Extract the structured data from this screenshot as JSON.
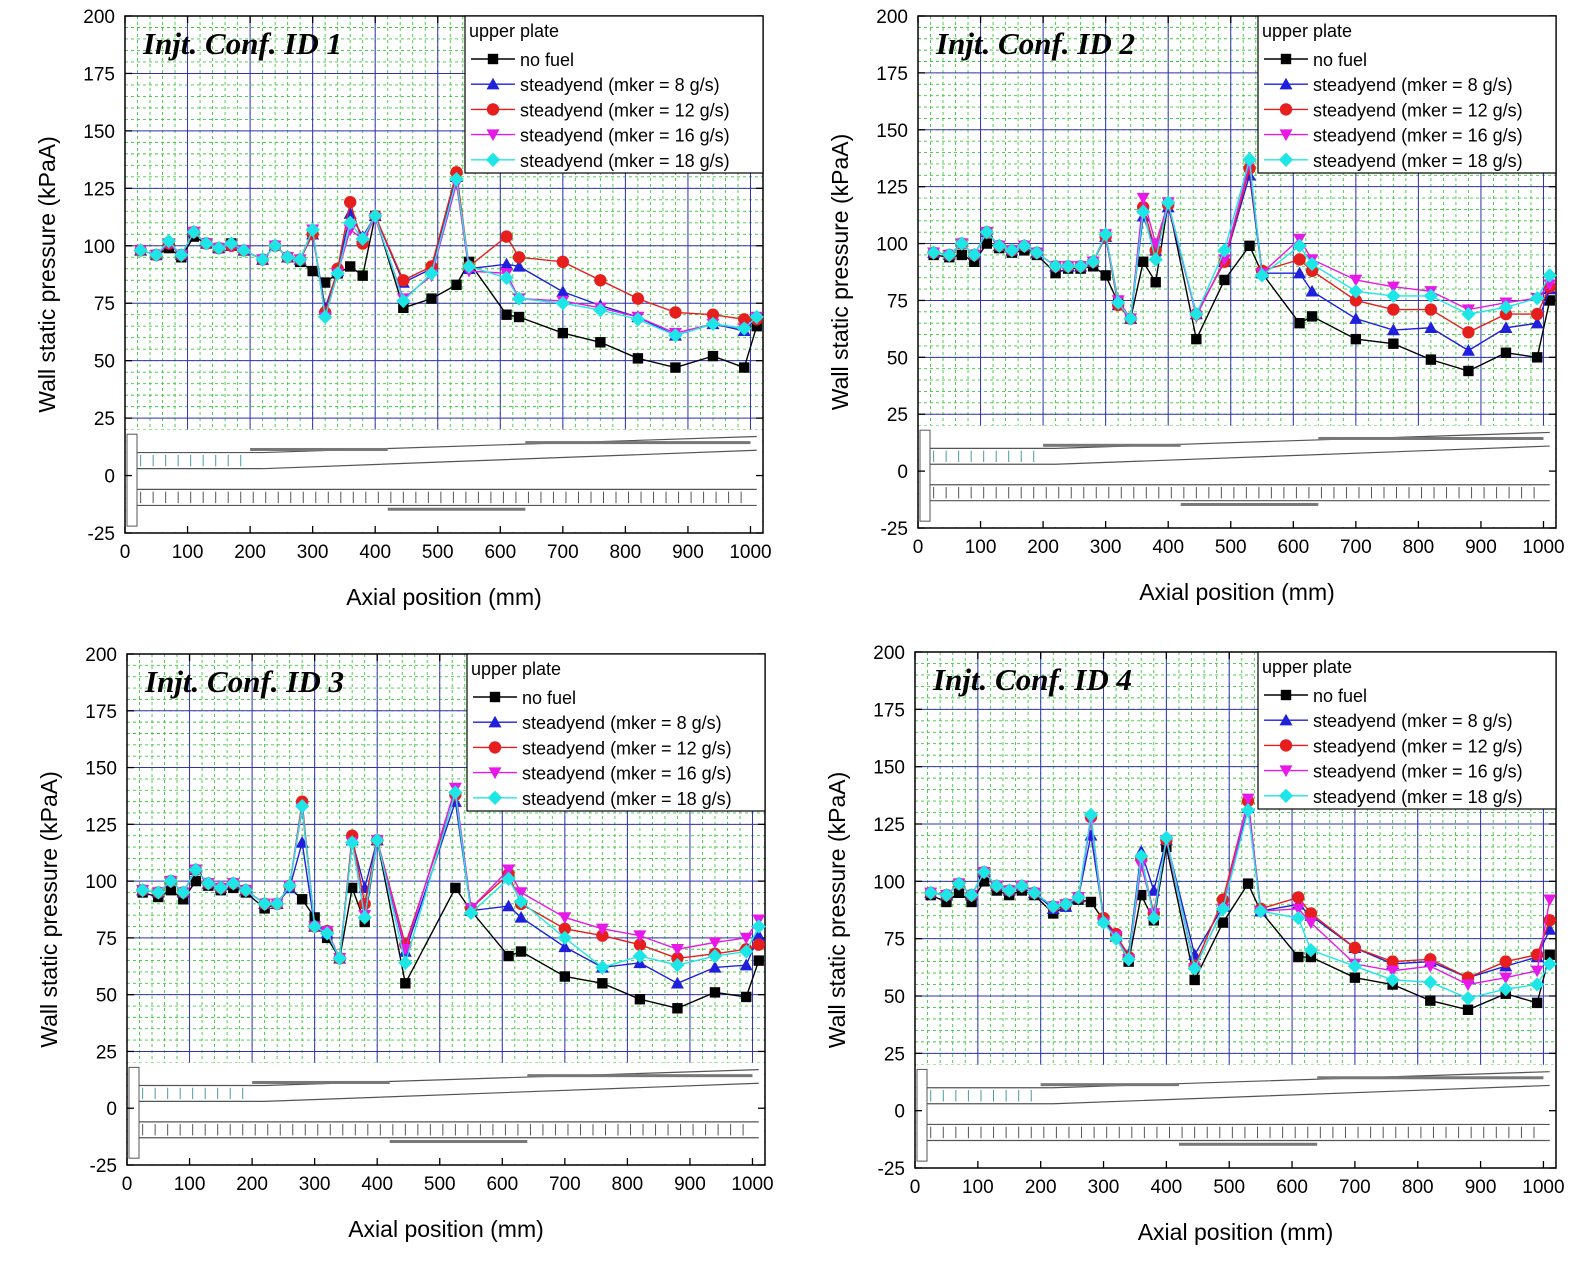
{
  "chart_data": [
    {
      "type": "line",
      "title": "Injt. Conf. ID 1",
      "xlabel": "Axial position (mm)",
      "ylabel": "Wall static pressure (kPaA)",
      "xlim": [
        0,
        1020
      ],
      "ylim": [
        -25,
        200
      ],
      "xticks": [
        "0",
        "100",
        "200",
        "300",
        "400",
        "500",
        "600",
        "700",
        "800",
        "900",
        "1000"
      ],
      "yticks": [
        "-25",
        "0",
        "25",
        "50",
        "75",
        "100",
        "125",
        "150",
        "175",
        "200"
      ],
      "grid": true,
      "legend_title": "upper plate",
      "legend_position": "top-right",
      "x": [
        25,
        50,
        70,
        90,
        110,
        130,
        150,
        170,
        190,
        220,
        240,
        260,
        280,
        300,
        320,
        340,
        360,
        380,
        400,
        445,
        490,
        530,
        550,
        610,
        630,
        700,
        760,
        820,
        880,
        940,
        990,
        1010
      ],
      "series": [
        {
          "name": "no fuel",
          "color": "#000000",
          "marker": "square",
          "values": [
            98,
            96,
            99,
            95,
            104,
            101,
            99,
            101,
            98,
            94,
            100,
            95,
            93,
            89,
            84,
            88,
            91,
            87,
            113,
            73,
            77,
            83,
            93,
            70,
            69,
            62,
            58,
            51,
            47,
            52,
            47,
            65
          ]
        },
        {
          "name": "steadyend (mker = 8 g/s)",
          "color": "#1f1fdc",
          "marker": "triangle-up",
          "values": [
            98,
            96,
            101,
            96,
            106,
            101,
            99,
            100,
            98,
            94,
            100,
            95,
            94,
            105,
            73,
            89,
            114,
            104,
            113,
            84,
            90,
            130,
            90,
            92,
            91,
            80,
            74,
            69,
            61,
            66,
            63,
            69
          ]
        },
        {
          "name": "steadyend (mker = 12 g/s)",
          "color": "#e61e1e",
          "marker": "circle",
          "values": [
            98,
            96,
            101,
            96,
            106,
            101,
            99,
            100,
            98,
            94,
            100,
            95,
            94,
            105,
            71,
            90,
            119,
            101,
            113,
            85,
            91,
            132,
            91,
            104,
            95,
            93,
            85,
            77,
            71,
            70,
            68,
            68
          ]
        },
        {
          "name": "steadyend (mker = 16 g/s)",
          "color": "#e619e6",
          "marker": "triangle-down",
          "values": [
            98,
            96,
            101,
            96,
            106,
            101,
            99,
            100,
            98,
            94,
            100,
            95,
            94,
            107,
            69,
            88,
            107,
            103,
            112,
            77,
            87,
            127,
            89,
            88,
            77,
            76,
            73,
            69,
            62,
            66,
            64,
            69
          ]
        },
        {
          "name": "steadyend (mker = 18 g/s)",
          "color": "#1fe6e6",
          "marker": "diamond",
          "values": [
            98,
            96,
            102,
            96,
            106,
            101,
            99,
            101,
            98,
            94,
            100,
            95,
            94,
            107,
            69,
            88,
            110,
            103,
            113,
            76,
            88,
            129,
            91,
            86,
            77,
            75,
            72,
            68,
            61,
            66,
            64,
            69
          ]
        }
      ]
    },
    {
      "type": "line",
      "title": "Injt. Conf. ID 2",
      "xlabel": "Axial position (mm)",
      "ylabel": "Wall static pressure (kPaA)",
      "xlim": [
        0,
        1020
      ],
      "ylim": [
        -25,
        200
      ],
      "xticks": [
        "0",
        "100",
        "200",
        "300",
        "400",
        "500",
        "600",
        "700",
        "800",
        "900",
        "1000"
      ],
      "yticks": [
        "-25",
        "0",
        "25",
        "50",
        "75",
        "100",
        "125",
        "150",
        "175",
        "200"
      ],
      "grid": true,
      "legend_title": "upper plate",
      "legend_position": "top-right",
      "x": [
        25,
        50,
        70,
        90,
        110,
        130,
        150,
        170,
        190,
        220,
        240,
        260,
        280,
        300,
        320,
        340,
        360,
        380,
        400,
        445,
        490,
        530,
        550,
        610,
        630,
        700,
        760,
        820,
        880,
        940,
        990,
        1010
      ],
      "series": [
        {
          "name": "no fuel",
          "color": "#000000",
          "marker": "square",
          "values": [
            95,
            94,
            95,
            92,
            100,
            98,
            96,
            97,
            95,
            87,
            89,
            89,
            90,
            86,
            74,
            67,
            92,
            83,
            118,
            58,
            84,
            99,
            87,
            65,
            68,
            58,
            56,
            49,
            44,
            52,
            50,
            75
          ]
        },
        {
          "name": "steadyend (mker = 8 g/s)",
          "color": "#1f1fdc",
          "marker": "triangle-up",
          "values": [
            96,
            95,
            100,
            95,
            105,
            99,
            97,
            99,
            96,
            90,
            90,
            90,
            92,
            103,
            73,
            67,
            112,
            97,
            116,
            69,
            92,
            130,
            87,
            87,
            79,
            67,
            62,
            63,
            53,
            63,
            65,
            80
          ]
        },
        {
          "name": "steadyend (mker = 12 g/s)",
          "color": "#e61e1e",
          "marker": "circle",
          "values": [
            96,
            95,
            100,
            95,
            105,
            99,
            97,
            99,
            96,
            90,
            90,
            90,
            92,
            103,
            73,
            67,
            116,
            97,
            117,
            69,
            92,
            133,
            88,
            93,
            88,
            75,
            71,
            71,
            61,
            69,
            69,
            81
          ]
        },
        {
          "name": "steadyend (mker = 16 g/s)",
          "color": "#e619e6",
          "marker": "triangle-down",
          "values": [
            96,
            95,
            100,
            95,
            105,
            99,
            97,
            99,
            96,
            90,
            90,
            90,
            92,
            104,
            75,
            67,
            120,
            100,
            118,
            68,
            93,
            135,
            87,
            102,
            93,
            84,
            81,
            79,
            71,
            74,
            76,
            82
          ]
        },
        {
          "name": "steadyend (mker = 18 g/s)",
          "color": "#1fe6e6",
          "marker": "diamond",
          "values": [
            96,
            95,
            100,
            95,
            105,
            99,
            97,
            99,
            96,
            90,
            90,
            90,
            92,
            104,
            74,
            67,
            114,
            93,
            118,
            69,
            97,
            137,
            86,
            99,
            91,
            79,
            77,
            77,
            69,
            72,
            76,
            86
          ]
        }
      ]
    },
    {
      "type": "line",
      "title": "Injt. Conf. ID 3",
      "xlabel": "Axial position (mm)",
      "ylabel": "Wall static pressure (kPaA)",
      "xlim": [
        0,
        1020
      ],
      "ylim": [
        -25,
        200
      ],
      "xticks": [
        "0",
        "100",
        "200",
        "300",
        "400",
        "500",
        "600",
        "700",
        "800",
        "900",
        "1000"
      ],
      "yticks": [
        "-25",
        "0",
        "25",
        "50",
        "75",
        "100",
        "125",
        "150",
        "175",
        "200"
      ],
      "grid": true,
      "legend_title": "upper plate",
      "legend_position": "top-right",
      "x": [
        25,
        50,
        70,
        90,
        110,
        130,
        150,
        170,
        190,
        220,
        240,
        260,
        280,
        300,
        320,
        340,
        360,
        380,
        400,
        445,
        525,
        550,
        610,
        630,
        700,
        760,
        820,
        880,
        940,
        990,
        1010
      ],
      "series": [
        {
          "name": "no fuel",
          "color": "#000000",
          "marker": "square",
          "values": [
            95,
            93,
            96,
            92,
            100,
            98,
            96,
            97,
            95,
            88,
            90,
            97,
            92,
            84,
            75,
            66,
            97,
            82,
            118,
            55,
            97,
            87,
            67,
            69,
            58,
            55,
            48,
            44,
            51,
            49,
            65
          ]
        },
        {
          "name": "steadyend (mker = 8 g/s)",
          "color": "#1f1fdc",
          "marker": "triangle-up",
          "values": [
            96,
            95,
            100,
            95,
            105,
            99,
            97,
            99,
            96,
            90,
            90,
            97,
            117,
            80,
            77,
            66,
            118,
            97,
            118,
            69,
            135,
            87,
            89,
            84,
            71,
            62,
            64,
            55,
            62,
            63,
            76
          ]
        },
        {
          "name": "steadyend (mker = 12 g/s)",
          "color": "#e61e1e",
          "marker": "circle",
          "values": [
            96,
            95,
            100,
            95,
            105,
            99,
            97,
            99,
            96,
            90,
            90,
            98,
            135,
            80,
            78,
            66,
            120,
            90,
            118,
            72,
            138,
            88,
            103,
            90,
            79,
            76,
            72,
            66,
            68,
            70,
            72
          ]
        },
        {
          "name": "steadyend (mker = 16 g/s)",
          "color": "#e619e6",
          "marker": "triangle-down",
          "values": [
            96,
            95,
            100,
            95,
            105,
            99,
            97,
            99,
            96,
            90,
            90,
            98,
            132,
            80,
            78,
            66,
            117,
            85,
            118,
            70,
            141,
            88,
            105,
            95,
            84,
            79,
            76,
            70,
            73,
            75,
            83
          ]
        },
        {
          "name": "steadyend (mker = 18 g/s)",
          "color": "#1fe6e6",
          "marker": "diamond",
          "values": [
            96,
            95,
            100,
            95,
            105,
            99,
            97,
            99,
            96,
            90,
            90,
            98,
            133,
            80,
            77,
            66,
            117,
            84,
            118,
            64,
            139,
            86,
            101,
            91,
            75,
            62,
            67,
            63,
            67,
            69,
            80
          ]
        }
      ]
    },
    {
      "type": "line",
      "title": "Injt. Conf. ID 4",
      "xlabel": "Axial position (mm)",
      "ylabel": "Wall static pressure (kPaA)",
      "xlim": [
        0,
        1020
      ],
      "ylim": [
        -25,
        200
      ],
      "xticks": [
        "0",
        "100",
        "200",
        "300",
        "400",
        "500",
        "600",
        "700",
        "800",
        "900",
        "1000"
      ],
      "yticks": [
        "-25",
        "0",
        "25",
        "50",
        "75",
        "100",
        "125",
        "150",
        "175",
        "200"
      ],
      "grid": true,
      "legend_title": "upper plate",
      "legend_position": "top-right",
      "x": [
        25,
        50,
        70,
        90,
        110,
        130,
        150,
        170,
        190,
        220,
        240,
        260,
        280,
        300,
        320,
        340,
        360,
        380,
        400,
        445,
        490,
        530,
        550,
        610,
        630,
        700,
        760,
        820,
        880,
        940,
        990,
        1010
      ],
      "series": [
        {
          "name": "no fuel",
          "color": "#000000",
          "marker": "square",
          "values": [
            94,
            91,
            95,
            91,
            100,
            96,
            94,
            96,
            94,
            86,
            89,
            92,
            91,
            83,
            76,
            65,
            94,
            83,
            115,
            57,
            82,
            99,
            87,
            67,
            67,
            58,
            55,
            48,
            44,
            51,
            47,
            68
          ]
        },
        {
          "name": "steadyend (mker = 8 g/s)",
          "color": "#1f1fdc",
          "marker": "triangle-up",
          "values": [
            95,
            94,
            99,
            94,
            104,
            98,
            96,
            98,
            95,
            88,
            89,
            93,
            120,
            84,
            76,
            68,
            113,
            96,
            118,
            68,
            89,
            132,
            87,
            90,
            85,
            71,
            64,
            65,
            58,
            63,
            67,
            79
          ]
        },
        {
          "name": "steadyend (mker = 12 g/s)",
          "color": "#e61e1e",
          "marker": "circle",
          "values": [
            95,
            94,
            99,
            94,
            104,
            98,
            96,
            98,
            95,
            89,
            90,
            93,
            128,
            84,
            77,
            67,
            110,
            86,
            118,
            63,
            92,
            135,
            88,
            93,
            86,
            71,
            65,
            66,
            58,
            65,
            68,
            83
          ]
        },
        {
          "name": "steadyend (mker = 16 g/s)",
          "color": "#e619e6",
          "marker": "triangle-down",
          "values": [
            95,
            94,
            99,
            94,
            104,
            98,
            96,
            98,
            95,
            89,
            90,
            93,
            127,
            82,
            76,
            66,
            107,
            86,
            118,
            62,
            88,
            136,
            87,
            88,
            82,
            64,
            61,
            63,
            55,
            58,
            61,
            92
          ]
        },
        {
          "name": "steadyend (mker = 18 g/s)",
          "color": "#1fe6e6",
          "marker": "diamond",
          "values": [
            95,
            94,
            99,
            94,
            104,
            98,
            96,
            98,
            95,
            89,
            90,
            93,
            129,
            82,
            75,
            66,
            111,
            84,
            119,
            62,
            88,
            131,
            87,
            84,
            70,
            63,
            57,
            56,
            49,
            53,
            55,
            64
          ]
        }
      ]
    }
  ]
}
